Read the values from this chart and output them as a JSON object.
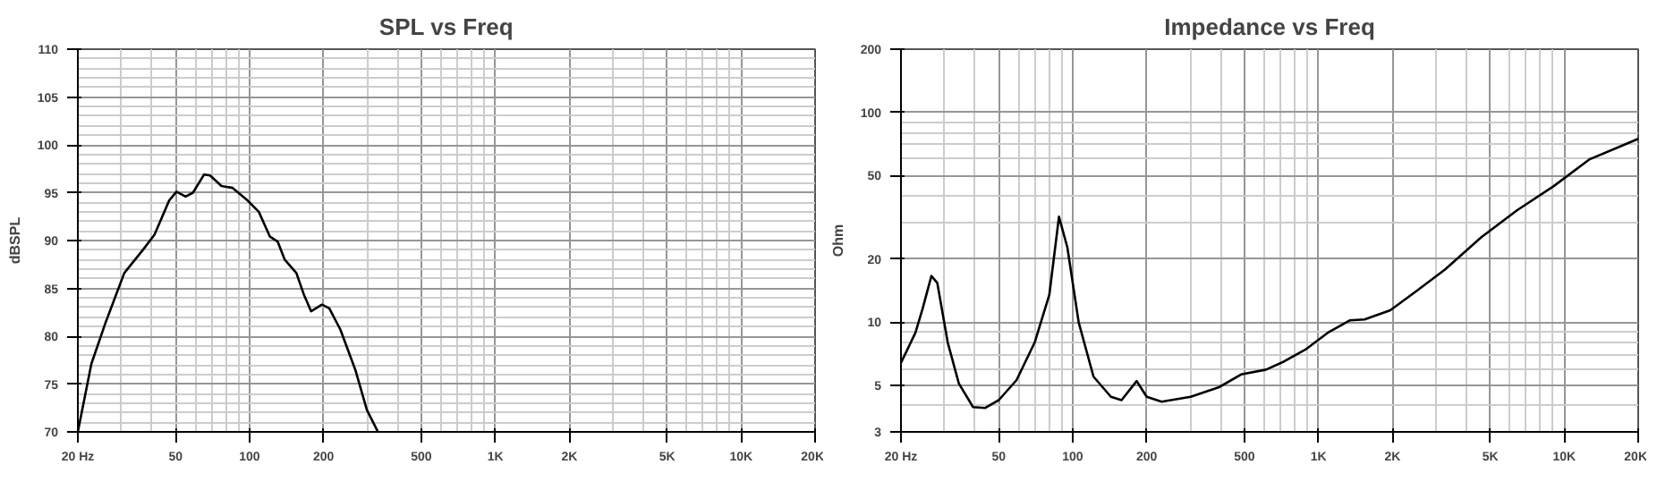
{
  "chart_data": [
    {
      "type": "line",
      "title": "SPL vs Freq",
      "ylabel": "dBSPL",
      "log": "x",
      "grid": true,
      "xlim": [
        20,
        20000
      ],
      "ylim": [
        70,
        110
      ],
      "xticks": [
        {
          "value": 20,
          "label": "20 Hz"
        },
        50,
        100,
        200,
        500,
        {
          "value": 1000,
          "label": "1K"
        },
        {
          "value": 2000,
          "label": "2K"
        },
        {
          "value": 5000,
          "label": "5K"
        },
        {
          "value": 10000,
          "label": "10K"
        },
        {
          "value": 20000,
          "label": "20K"
        }
      ],
      "yticks": [
        70,
        75,
        80,
        85,
        90,
        95,
        100,
        105,
        110
      ],
      "series": [
        {
          "color": "#000000",
          "x": [
            20,
            22.7,
            26,
            30.9,
            37,
            41,
            47.1,
            50.4,
            54.9,
            58.8,
            65.3,
            69.1,
            76.8,
            85.3,
            98,
            109,
            121,
            130,
            139,
            155,
            166,
            178,
            197,
            211,
            234,
            270,
            300,
            333
          ],
          "values": [
            70,
            77.1,
            81.5,
            86.6,
            89.1,
            90.6,
            94.2,
            95.1,
            94.6,
            95.0,
            96.9,
            96.8,
            95.7,
            95.5,
            94.2,
            93.0,
            90.4,
            89.9,
            88.0,
            86.6,
            84.4,
            82.6,
            83.3,
            82.9,
            80.7,
            76.4,
            72.3,
            70
          ]
        }
      ]
    },
    {
      "type": "line",
      "title": "Impedance vs Freq",
      "ylabel": "Ohm",
      "log": "xy",
      "grid": true,
      "xlim": [
        20,
        20000
      ],
      "ylim": [
        3,
        200
      ],
      "xticks": [
        {
          "value": 20,
          "label": "20 Hz"
        },
        50,
        100,
        200,
        500,
        {
          "value": 1000,
          "label": "1K"
        },
        {
          "value": 2000,
          "label": "2K"
        },
        {
          "value": 5000,
          "label": "5K"
        },
        {
          "value": 10000,
          "label": "10K"
        },
        {
          "value": 20000,
          "label": "20K"
        }
      ],
      "yticks": [
        3,
        5,
        10,
        20,
        50,
        100,
        200
      ],
      "series": [
        {
          "color": "#000000",
          "x": [
            20,
            22.9,
            24.5,
            26.6,
            28.1,
            31,
            34.4,
            39.3,
            43.9,
            50,
            59.1,
            70,
            80.3,
            87.9,
            95.1,
            105.7,
            121.5,
            143,
            158,
            182,
            200,
            230,
            302,
            394,
            484,
            612,
            725,
            885,
            1090,
            1340,
            1540,
            1960,
            2490,
            3270,
            4600,
            6440,
            9040,
            12700,
            20000
          ],
          "values": [
            6.4,
            8.9,
            11.6,
            16.6,
            15.4,
            8.0,
            5.1,
            3.94,
            3.9,
            4.25,
            5.3,
            8.0,
            13.5,
            31.8,
            22.7,
            10.0,
            5.5,
            4.41,
            4.25,
            5.24,
            4.41,
            4.18,
            4.41,
            4.9,
            5.63,
            5.94,
            6.5,
            7.4,
            8.9,
            10.2,
            10.3,
            11.4,
            14.0,
            17.8,
            25.4,
            34.2,
            44.4,
            59.8,
            74.8
          ]
        }
      ]
    }
  ]
}
